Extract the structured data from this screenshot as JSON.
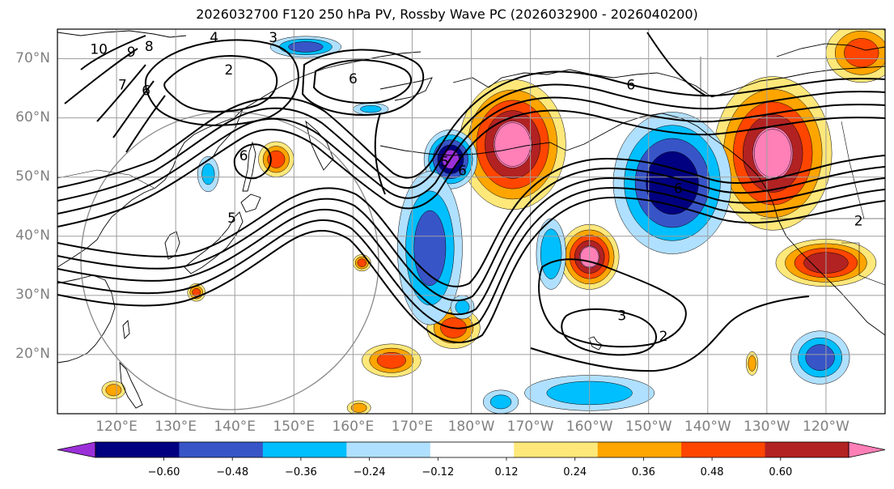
{
  "title": "2026032700 F120 250 hPa PV, Rossby Wave PC (2026032900 - 2026040200)",
  "map": {
    "projection": "equirectangular",
    "lon_range": [
      110.0,
      250.0
    ],
    "lat_range": [
      10.0,
      75.0
    ],
    "lat_labels": [
      {
        "lat": 70,
        "text": "70°N"
      },
      {
        "lat": 60,
        "text": "60°N"
      },
      {
        "lat": 50,
        "text": "50°N"
      },
      {
        "lat": 40,
        "text": "40°N"
      },
      {
        "lat": 30,
        "text": "30°N"
      },
      {
        "lat": 20,
        "text": "20°N"
      }
    ],
    "lon_labels": [
      {
        "lon": 120,
        "text": "120°E"
      },
      {
        "lon": 130,
        "text": "130°E"
      },
      {
        "lon": 140,
        "text": "140°E"
      },
      {
        "lon": 150,
        "text": "150°E"
      },
      {
        "lon": 160,
        "text": "160°E"
      },
      {
        "lon": 170,
        "text": "170°E"
      },
      {
        "lon": 180,
        "text": "180°W"
      },
      {
        "lon": 190,
        "text": "170°W"
      },
      {
        "lon": 200,
        "text": "160°W"
      },
      {
        "lon": 210,
        "text": "150°W"
      },
      {
        "lon": 220,
        "text": "140°W"
      },
      {
        "lon": 230,
        "text": "130°W"
      },
      {
        "lon": 240,
        "text": "120°W"
      }
    ],
    "pv_contour_labels": [
      {
        "text": "10",
        "lon": 117.0,
        "lat": 71.5
      },
      {
        "text": "9",
        "lon": 122.5,
        "lat": 71.0
      },
      {
        "text": "8",
        "lon": 125.5,
        "lat": 72.0
      },
      {
        "text": "7",
        "lon": 121.0,
        "lat": 65.5
      },
      {
        "text": "6",
        "lon": 125.0,
        "lat": 64.5
      },
      {
        "text": "4",
        "lon": 136.5,
        "lat": 73.5
      },
      {
        "text": "3",
        "lon": 146.5,
        "lat": 73.5
      },
      {
        "text": "2",
        "lon": 139.0,
        "lat": 68.0
      },
      {
        "text": "6",
        "lon": 160.0,
        "lat": 66.5
      },
      {
        "text": "6",
        "lon": 141.5,
        "lat": 53.5
      },
      {
        "text": "5",
        "lon": 139.5,
        "lat": 43.0
      },
      {
        "text": "5",
        "lon": 175.5,
        "lat": 52.5
      },
      {
        "text": "6",
        "lon": 178.5,
        "lat": 51.0
      },
      {
        "text": "6",
        "lon": 207.0,
        "lat": 65.5
      },
      {
        "text": "6",
        "lon": 215.0,
        "lat": 48.0
      },
      {
        "text": "3",
        "lon": 205.5,
        "lat": 26.5
      },
      {
        "text": "2",
        "lon": 212.5,
        "lat": 23.0
      },
      {
        "text": "2",
        "lon": 245.5,
        "lat": 42.5
      }
    ]
  },
  "colorbar": {
    "ticks": [
      "−0.60",
      "−0.48",
      "−0.36",
      "−0.24",
      "−0.12",
      "0.12",
      "0.24",
      "0.36",
      "0.48",
      "0.60"
    ],
    "tick_values": [
      -0.6,
      -0.48,
      -0.36,
      -0.24,
      -0.12,
      0.12,
      0.24,
      0.36,
      0.48,
      0.6
    ],
    "under_color": "#9b30d9",
    "over_color": "#ff7fb7",
    "colors": [
      "#9b30d9",
      "#000080",
      "#3855c8",
      "#00bfff",
      "#b0e0ff",
      "#ffffff",
      "#ffe87a",
      "#ffa500",
      "#ff4500",
      "#b22222",
      "#ff7fb7"
    ]
  },
  "pc_anomalies": [
    {
      "lon": 200.0,
      "lat": 36.5,
      "rx": 5.0,
      "ry": 5.5,
      "value": 0.62
    },
    {
      "lon": 187.0,
      "lat": 55.5,
      "rx": 9.0,
      "ry": 11.0,
      "value": 0.64
    },
    {
      "lon": 231.0,
      "lat": 54.0,
      "rx": 10.0,
      "ry": 13.0,
      "value": 0.62
    },
    {
      "lon": 240.0,
      "lat": 35.5,
      "rx": 8.5,
      "ry": 4.0,
      "value": 0.55
    },
    {
      "lon": 246.0,
      "lat": 71.0,
      "rx": 6.0,
      "ry": 5.0,
      "value": 0.4
    },
    {
      "lon": 177.0,
      "lat": 24.5,
      "rx": 4.5,
      "ry": 3.5,
      "value": 0.4
    },
    {
      "lon": 166.5,
      "lat": 19.0,
      "rx": 5.0,
      "ry": 2.8,
      "value": 0.4
    },
    {
      "lon": 147.0,
      "lat": 53.0,
      "rx": 3.0,
      "ry": 3.0,
      "value": 0.4
    },
    {
      "lon": 161.5,
      "lat": 35.5,
      "rx": 1.5,
      "ry": 1.4,
      "value": 0.4
    },
    {
      "lon": 133.5,
      "lat": 30.5,
      "rx": 1.5,
      "ry": 1.5,
      "value": 0.38
    },
    {
      "lon": 227.5,
      "lat": 18.5,
      "rx": 1.0,
      "ry": 2.0,
      "value": 0.3
    },
    {
      "lon": 119.5,
      "lat": 14.0,
      "rx": 2.0,
      "ry": 1.5,
      "value": 0.3
    },
    {
      "lon": 161.0,
      "lat": 11.0,
      "rx": 2.0,
      "ry": 1.2,
      "value": 0.3
    },
    {
      "lon": 176.5,
      "lat": 53.0,
      "rx": 4.5,
      "ry": 5.0,
      "value": -0.6
    },
    {
      "lon": 173.0,
      "lat": 38.0,
      "rx": 5.5,
      "ry": 13.0,
      "value": -0.4
    },
    {
      "lon": 214.0,
      "lat": 49.0,
      "rx": 10.0,
      "ry": 12.0,
      "value": -0.55
    },
    {
      "lon": 239.0,
      "lat": 19.5,
      "rx": 5.0,
      "ry": 4.5,
      "value": -0.4
    },
    {
      "lon": 193.5,
      "lat": 37.0,
      "rx": 2.5,
      "ry": 6.0,
      "value": -0.35
    },
    {
      "lon": 200.0,
      "lat": 13.5,
      "rx": 11.0,
      "ry": 3.0,
      "value": -0.3
    },
    {
      "lon": 152.0,
      "lat": 72.0,
      "rx": 6.0,
      "ry": 1.8,
      "value": -0.4
    },
    {
      "lon": 178.5,
      "lat": 28.0,
      "rx": 2.0,
      "ry": 2.0,
      "value": -0.25
    },
    {
      "lon": 185.0,
      "lat": 12.0,
      "rx": 3.0,
      "ry": 2.0,
      "value": -0.25
    },
    {
      "lon": 135.5,
      "lat": 50.5,
      "rx": 1.8,
      "ry": 3.0,
      "value": -0.25
    },
    {
      "lon": 163.0,
      "lat": 61.5,
      "rx": 3.0,
      "ry": 1.0,
      "value": -0.25
    }
  ]
}
